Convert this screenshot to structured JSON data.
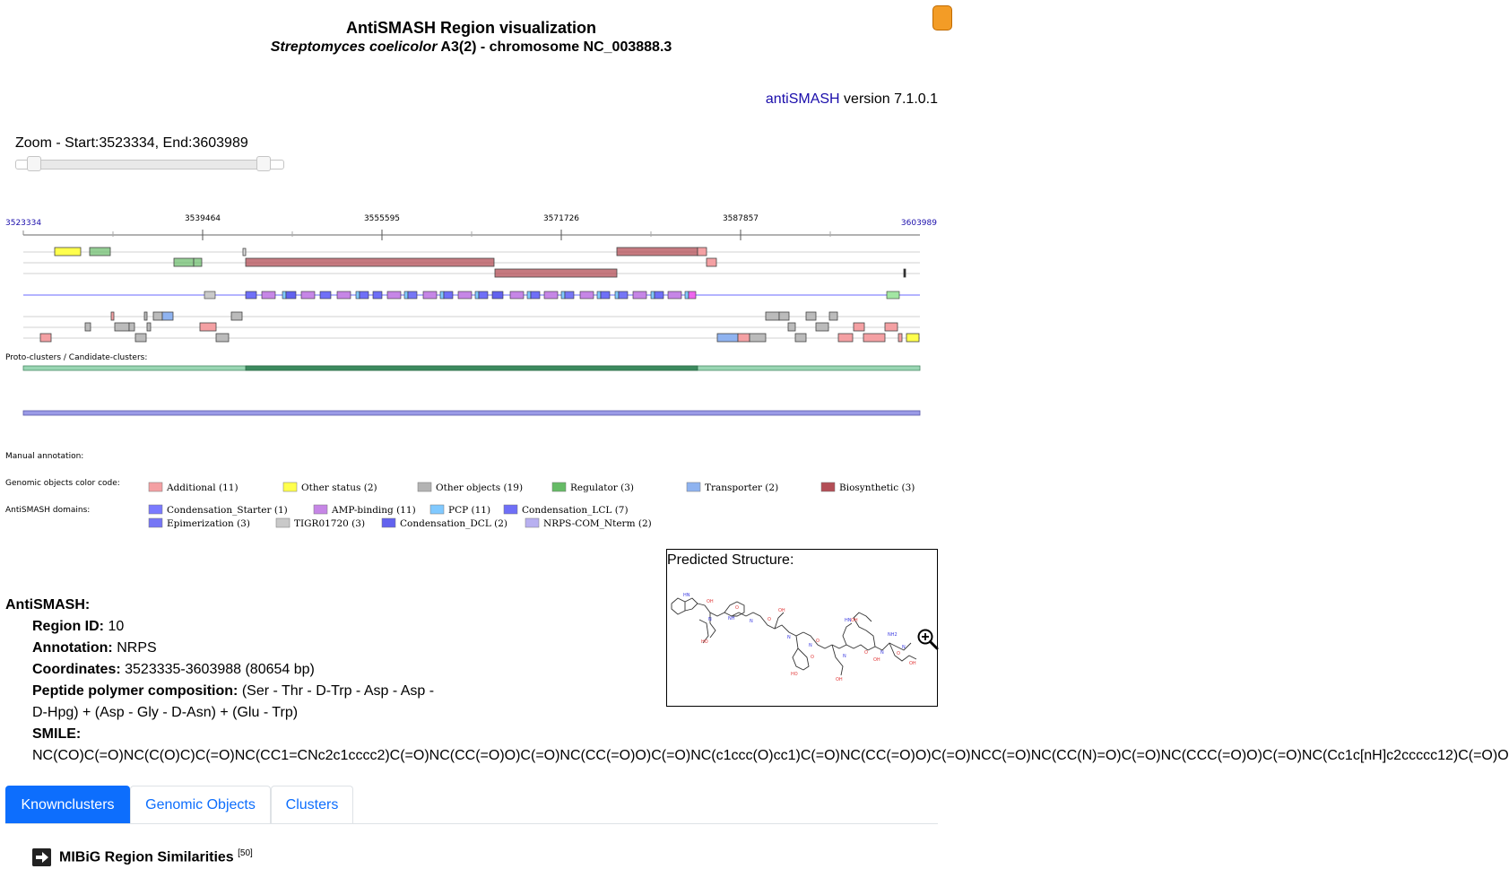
{
  "header": {
    "title": "AntiSMASH Region visualization",
    "subtitle_italic": "Streptomyces coelicolor",
    "subtitle_rest": "A3(2) - chromosome NC_003888.3"
  },
  "version": {
    "link": "antiSMASH",
    "text": "version 7.1.0.1"
  },
  "zoom": {
    "label": "Zoom - Start:3523334, End:3603989",
    "start_fraction": 0.07,
    "end_fraction": 0.93
  },
  "ruler": {
    "start": "3523334",
    "end": "3603989",
    "ticks": [
      "3539464",
      "3555595",
      "3571726",
      "3587857"
    ]
  },
  "sections": {
    "protoclusters": "Proto-clusters / Candidate-clusters:",
    "manual": "Manual annotation:",
    "color_code": "Genomic objects color code:",
    "domains": "AntiSMASH domains:"
  },
  "legend_objects": [
    {
      "label": "Additional (11)",
      "color": "#f4a0a3"
    },
    {
      "label": "Other status (2)",
      "color": "#ffff4d"
    },
    {
      "label": "Other objects (19)",
      "color": "#b3b3b3"
    },
    {
      "label": "Regulator (3)",
      "color": "#66bb66"
    },
    {
      "label": "Transporter (2)",
      "color": "#8fb3f0"
    },
    {
      "label": "Biosynthetic (3)",
      "color": "#b34e56"
    }
  ],
  "legend_domains": [
    {
      "label": "Condensation_Starter (1)",
      "color": "#7a7aff"
    },
    {
      "label": "AMP-binding (11)",
      "color": "#c686e6"
    },
    {
      "label": "PCP (11)",
      "color": "#80c9ff"
    },
    {
      "label": "Condensation_LCL (7)",
      "color": "#6f6ff7"
    },
    {
      "label": "Epimerization (3)",
      "color": "#7676f5"
    },
    {
      "label": "TIGR01720 (3)",
      "color": "#c9c9c9"
    },
    {
      "label": "Condensation_DCL (2)",
      "color": "#6262ee"
    },
    {
      "label": "NRPS-COM_Nterm (2)",
      "color": "#b8b0f0"
    }
  ],
  "summary": {
    "heading": "AntiSMASH:",
    "region_label": "Region ID:",
    "region_value": "10",
    "annotation_label": "Annotation:",
    "annotation_value": "NRPS",
    "coords_label": "Coordinates:",
    "coords_value": "3523335-3603988 (80654 bp)",
    "peptide_label": "Peptide polymer composition:",
    "peptide_value_1": "(Ser - Thr - D-Trp - Asp - Asp -",
    "peptide_value_2": "D-Hpg) + (Asp - Gly - D-Asn) + (Glu - Trp)",
    "smile_label": "SMILE:",
    "smile_value": "NC(CO)C(=O)NC(C(O)C)C(=O)NC(CC1=CNc2c1cccc2)C(=O)NC(CC(=O)O)C(=O)NC(CC(=O)O)C(=O)NC(c1ccc(O)cc1)C(=O)NC(CC(=O)O)C(=O)NCC(=O)NC(CC(N)=O)C(=O)NC(CCC(=O)O)C(=O)NC(Cc1c[nH]c2ccccc12)C(=O)O"
  },
  "structure": {
    "title": "Predicted Structure:"
  },
  "tabs": [
    {
      "label": "Knownclusters",
      "active": true
    },
    {
      "label": "Genomic Objects",
      "active": false
    },
    {
      "label": "Clusters",
      "active": false
    }
  ],
  "mibig": {
    "title": "MIBiG Region Similarities",
    "count": "[50]"
  }
}
